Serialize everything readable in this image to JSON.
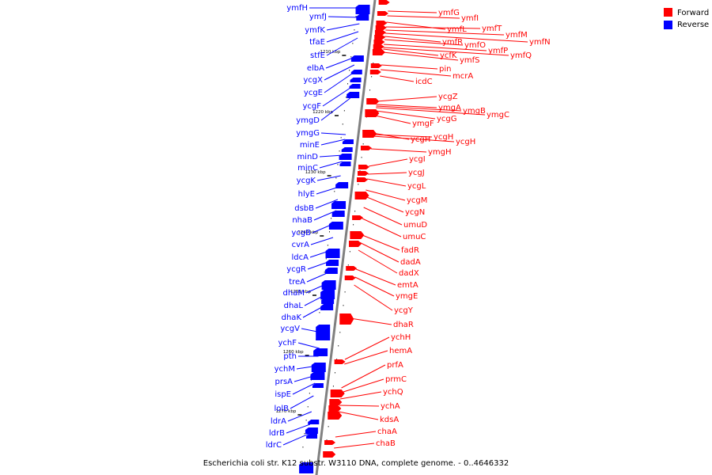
{
  "caption": "Escherichia coli str. K12 substr. W3110 DNA, complete genome. - 0..4646332",
  "legend": [
    {
      "label": "Forward",
      "color": "#ff0000"
    },
    {
      "label": "Reverse",
      "color": "#0000ff"
    }
  ],
  "colors": {
    "forward": "#ff0000",
    "reverse": "#0000ff",
    "axis": "#808080"
  },
  "ticks": [
    "1210 kbp",
    "1220 kbp",
    "1230 kbp",
    "1240 kbp",
    "1250 kbp",
    "1260 kbp",
    "1270 kbp"
  ],
  "reverse_genes": [
    "ymfH",
    "ymfJ",
    "ymfK",
    "tfaE",
    "stfE",
    "elbA",
    "ycgX",
    "ycgE",
    "ycgF",
    "ymgD",
    "ymgG",
    "minE",
    "minD",
    "minC",
    "ycgK",
    "hlyE",
    "dsbB",
    "nhaB",
    "ycgB",
    "cvrA",
    "ldcA",
    "ycgR",
    "treA",
    "dhaM",
    "dhaL",
    "dhaK",
    "ycgV",
    "ychF",
    "pth",
    "ychM",
    "prsA",
    "ispE",
    "lolB",
    "ldrA",
    "ldrB",
    "ldrC"
  ],
  "forward_genes": [
    "ymfG",
    "ymfI",
    "ymfL",
    "ymfT",
    "ymfM",
    "ymfN",
    "ymfR",
    "ymfO",
    "ymfP",
    "ymfQ",
    "ycfK",
    "ymfS",
    "pin",
    "mcrA",
    "icdC",
    "ycgZ",
    "ymgA",
    "ymgB",
    "ymgC",
    "ycgG",
    "ymgF",
    "ycgH",
    "ycgH",
    "ycgH",
    "ymgH",
    "ycgI",
    "ycgJ",
    "ycgL",
    "ycgM",
    "ycgN",
    "umuD",
    "umuC",
    "fadR",
    "dadA",
    "dadX",
    "emtA",
    "ymgE",
    "ycgY",
    "dhaR",
    "ychH",
    "hemA",
    "prfA",
    "prmC",
    "ychQ",
    "ychA",
    "kdsA",
    "chaA",
    "chaB"
  ]
}
